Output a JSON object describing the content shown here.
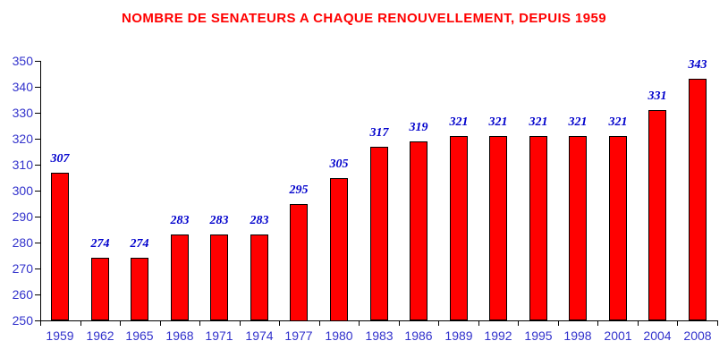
{
  "title": {
    "text": "NOMBRE DE SENATEURS A CHAQUE RENOUVELLEMENT, DEPUIS 1959",
    "color": "#ff0000"
  },
  "colors": {
    "background": "#ffffff",
    "bar_fill": "#ff0000",
    "bar_border": "#000000",
    "axis_line": "#000000",
    "axis_tick_label": "#3333cc",
    "data_label": "#0000cc",
    "title": "#ff0000"
  },
  "chart_data": {
    "type": "bar",
    "title": "NOMBRE DE SENATEURS A CHAQUE RENOUVELLEMENT, DEPUIS 1959",
    "categories": [
      "1959",
      "1962",
      "1965",
      "1968",
      "1971",
      "1974",
      "1977",
      "1980",
      "1983",
      "1986",
      "1989",
      "1992",
      "1995",
      "1998",
      "2001",
      "2004",
      "2008"
    ],
    "values": [
      307,
      274,
      274,
      283,
      283,
      283,
      295,
      305,
      317,
      319,
      321,
      321,
      321,
      321,
      321,
      331,
      343
    ],
    "xlabel": "",
    "ylabel": "",
    "ylim": [
      250,
      350
    ],
    "yticks": [
      250,
      260,
      270,
      280,
      290,
      300,
      310,
      320,
      330,
      340,
      350
    ],
    "grid": false,
    "legend": false,
    "data_labels": true
  }
}
